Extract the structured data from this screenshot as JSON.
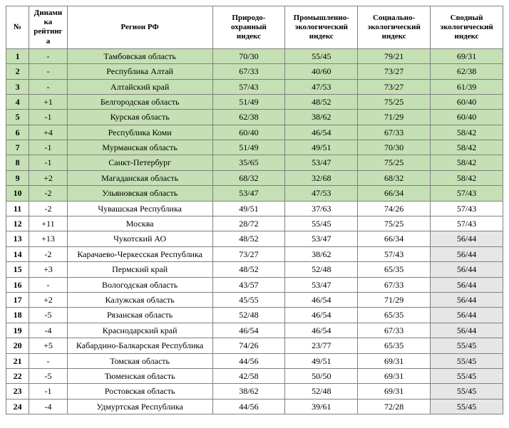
{
  "headers": {
    "num": "№",
    "dyn": "Динами\nка\nрейтинг\nа",
    "region": "Регион РФ",
    "idx1": "Природо-\nохранный\nиндекс",
    "idx2": "Промышленно-\nэкологический\nиндекс",
    "idx3": "Социально-\nэкологический\nиндекс",
    "idx4": "Сводный\nэкологический\nиндекс"
  },
  "rows": [
    {
      "num": "1",
      "dyn": "-",
      "region": "Тамбовская область",
      "i1": "70/30",
      "i2": "55/45",
      "i3": "79/21",
      "i4": "69/31",
      "green": true,
      "lastGrey": false
    },
    {
      "num": "2",
      "dyn": "-",
      "region": "Республика Алтай",
      "i1": "67/33",
      "i2": "40/60",
      "i3": "73/27",
      "i4": "62/38",
      "green": true,
      "lastGrey": false
    },
    {
      "num": "3",
      "dyn": "-",
      "region": "Алтайский край",
      "i1": "57/43",
      "i2": "47/53",
      "i3": "73/27",
      "i4": "61/39",
      "green": true,
      "lastGrey": false
    },
    {
      "num": "4",
      "dyn": "+1",
      "region": "Белгородская область",
      "i1": "51/49",
      "i2": "48/52",
      "i3": "75/25",
      "i4": "60/40",
      "green": true,
      "lastGrey": false
    },
    {
      "num": "5",
      "dyn": "-1",
      "region": "Курская область",
      "i1": "62/38",
      "i2": "38/62",
      "i3": "71/29",
      "i4": "60/40",
      "green": true,
      "lastGrey": false
    },
    {
      "num": "6",
      "dyn": "+4",
      "region": "Республика Коми",
      "i1": "60/40",
      "i2": "46/54",
      "i3": "67/33",
      "i4": "58/42",
      "green": true,
      "lastGrey": false
    },
    {
      "num": "7",
      "dyn": "-1",
      "region": "Мурманская область",
      "i1": "51/49",
      "i2": "49/51",
      "i3": "70/30",
      "i4": "58/42",
      "green": true,
      "lastGrey": false
    },
    {
      "num": "8",
      "dyn": "-1",
      "region": "Санкт-Петербург",
      "i1": "35/65",
      "i2": "53/47",
      "i3": "75/25",
      "i4": "58/42",
      "green": true,
      "lastGrey": false
    },
    {
      "num": "9",
      "dyn": "+2",
      "region": "Магаданская область",
      "i1": "68/32",
      "i2": "32/68",
      "i3": "68/32",
      "i4": "58/42",
      "green": true,
      "lastGrey": false
    },
    {
      "num": "10",
      "dyn": "-2",
      "region": "Ульяновская область",
      "i1": "53/47",
      "i2": "47/53",
      "i3": "66/34",
      "i4": "57/43",
      "green": true,
      "lastGrey": false
    },
    {
      "num": "11",
      "dyn": "-2",
      "region": "Чувашская Республика",
      "i1": "49/51",
      "i2": "37/63",
      "i3": "74/26",
      "i4": "57/43",
      "green": false,
      "lastGrey": false
    },
    {
      "num": "12",
      "dyn": "+11",
      "region": "Москва",
      "i1": "28/72",
      "i2": "55/45",
      "i3": "75/25",
      "i4": "57/43",
      "green": false,
      "lastGrey": false
    },
    {
      "num": "13",
      "dyn": "+13",
      "region": "Чукотский АО",
      "i1": "48/52",
      "i2": "53/47",
      "i3": "66/34",
      "i4": "56/44",
      "green": false,
      "lastGrey": true
    },
    {
      "num": "14",
      "dyn": "-2",
      "region": "Карачаево-Черкесская Республика",
      "i1": "73/27",
      "i2": "38/62",
      "i3": "57/43",
      "i4": "56/44",
      "green": false,
      "lastGrey": true
    },
    {
      "num": "15",
      "dyn": "+3",
      "region": "Пермский край",
      "i1": "48/52",
      "i2": "52/48",
      "i3": "65/35",
      "i4": "56/44",
      "green": false,
      "lastGrey": true
    },
    {
      "num": "16",
      "dyn": "-",
      "region": "Вологодская область",
      "i1": "43/57",
      "i2": "53/47",
      "i3": "67/33",
      "i4": "56/44",
      "green": false,
      "lastGrey": true
    },
    {
      "num": "17",
      "dyn": "+2",
      "region": "Калужская область",
      "i1": "45/55",
      "i2": "46/54",
      "i3": "71/29",
      "i4": "56/44",
      "green": false,
      "lastGrey": true
    },
    {
      "num": "18",
      "dyn": "-5",
      "region": "Рязанская область",
      "i1": "52/48",
      "i2": "46/54",
      "i3": "65/35",
      "i4": "56/44",
      "green": false,
      "lastGrey": true
    },
    {
      "num": "19",
      "dyn": "-4",
      "region": "Краснодарский край",
      "i1": "46/54",
      "i2": "46/54",
      "i3": "67/33",
      "i4": "56/44",
      "green": false,
      "lastGrey": true
    },
    {
      "num": "20",
      "dyn": "+5",
      "region": "Кабардино-Балкарская Республика",
      "i1": "74/26",
      "i2": "23/77",
      "i3": "65/35",
      "i4": "55/45",
      "green": false,
      "lastGrey": true
    },
    {
      "num": "21",
      "dyn": "-",
      "region": "Томская область",
      "i1": "44/56",
      "i2": "49/51",
      "i3": "69/31",
      "i4": "55/45",
      "green": false,
      "lastGrey": true
    },
    {
      "num": "22",
      "dyn": "-5",
      "region": "Тюменская область",
      "i1": "42/58",
      "i2": "50/50",
      "i3": "69/31",
      "i4": "55/45",
      "green": false,
      "lastGrey": true
    },
    {
      "num": "23",
      "dyn": "-1",
      "region": "Ростовская область",
      "i1": "38/62",
      "i2": "52/48",
      "i3": "69/31",
      "i4": "55/45",
      "green": false,
      "lastGrey": true
    },
    {
      "num": "24",
      "dyn": "-4",
      "region": "Удмуртская Республика",
      "i1": "44/56",
      "i2": "39/61",
      "i3": "72/28",
      "i4": "55/45",
      "green": false,
      "lastGrey": true
    }
  ]
}
